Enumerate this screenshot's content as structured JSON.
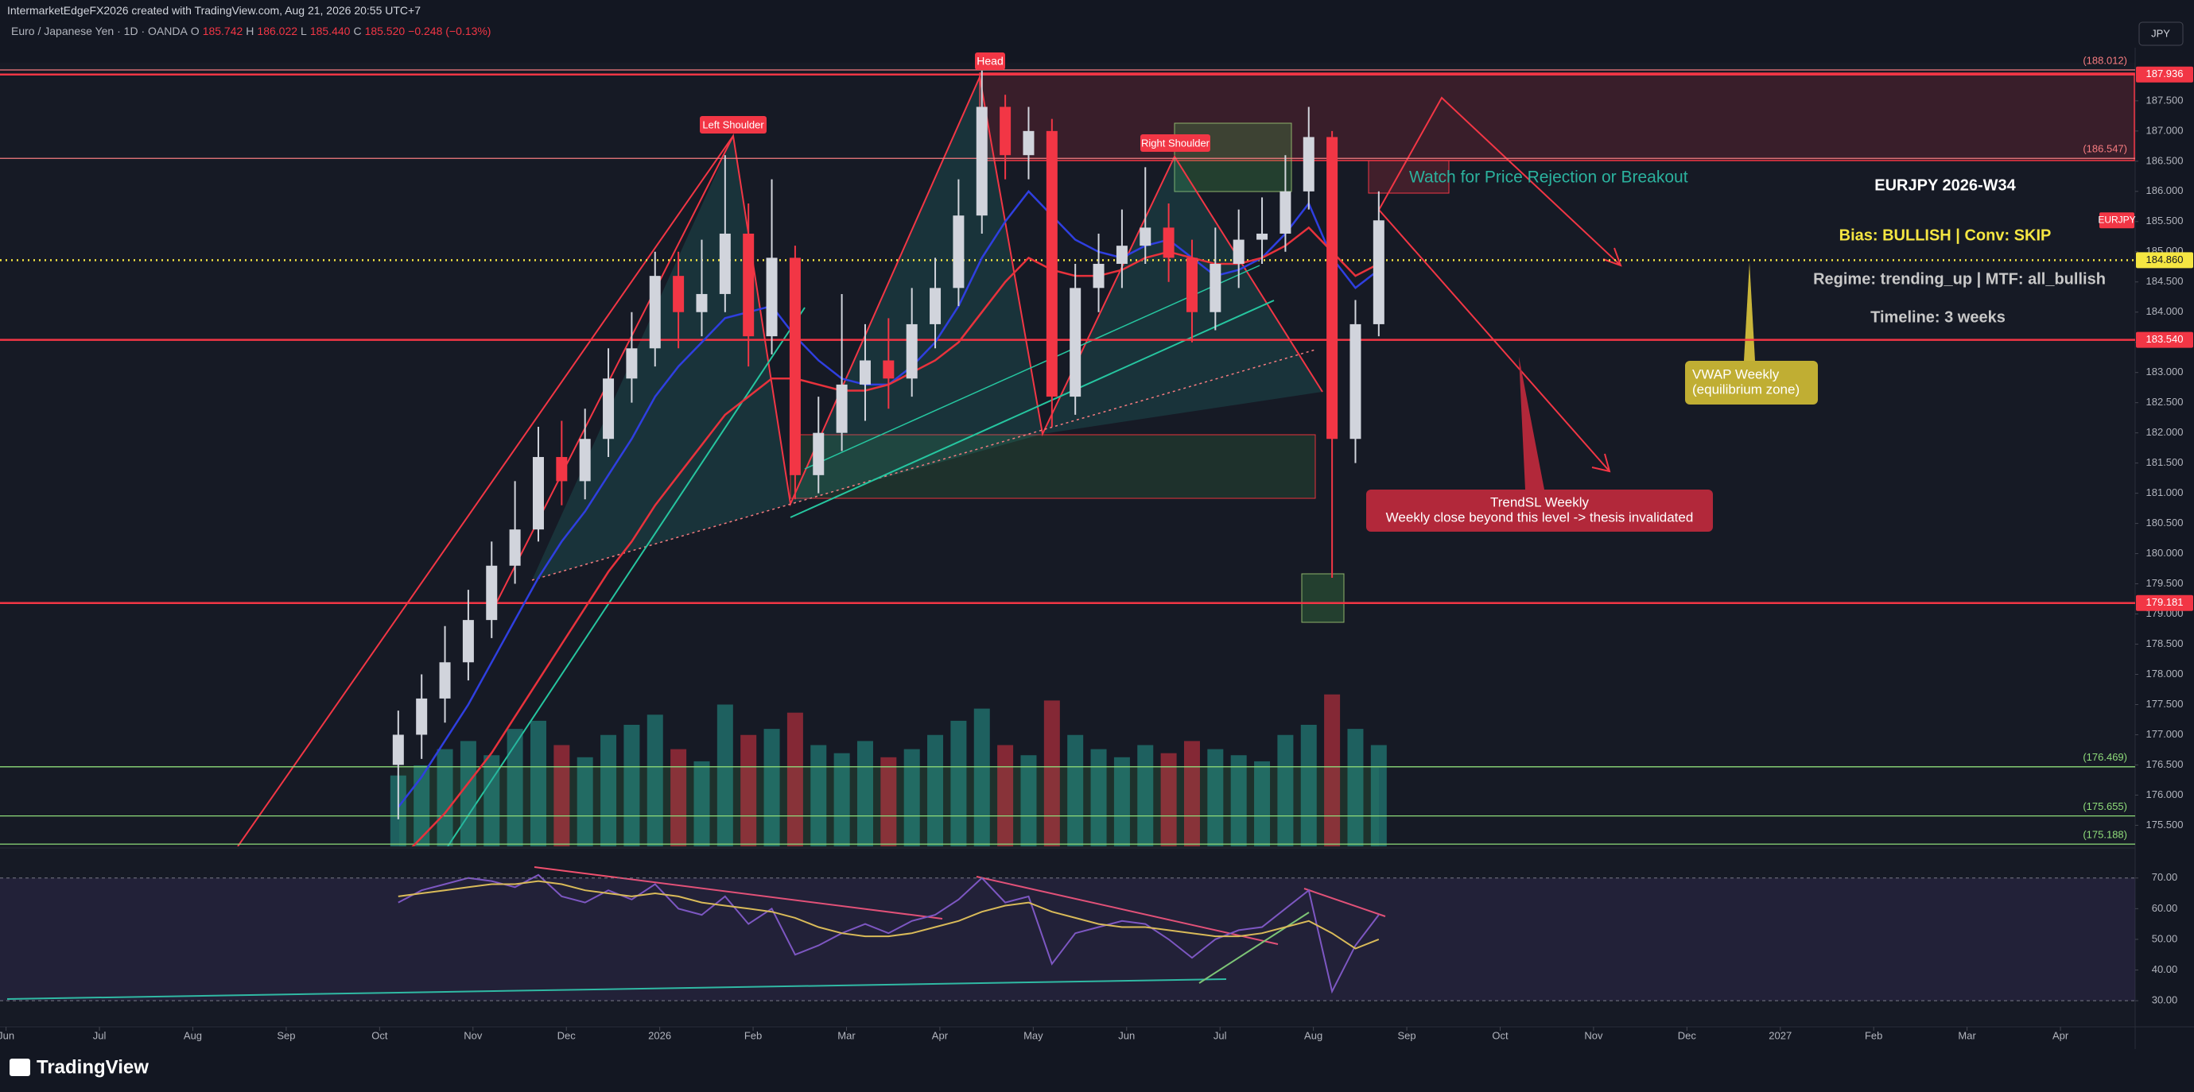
{
  "header": {
    "author_line": "IntermarketEdgeFX2026 created with TradingView.com, Aug 21, 2026 20:55 UTC+7",
    "symbol": "Euro / Japanese Yen · 1D · OANDA",
    "ohlc": [
      "O",
      "185.742",
      "H",
      "186.022",
      "L",
      "185.440",
      "C",
      "185.520",
      "−0.248 (−0.13%)"
    ],
    "currency": "JPY",
    "brand": "TradingView",
    "ticker": "EURJPY"
  },
  "annotations": {
    "head": "Head",
    "left_shoulder": "Left Shoulder",
    "right_shoulder": "Right Shoulder",
    "watch": "Watch for Price Rejection or Breakout",
    "title": "EURJPY 2026-W34",
    "bias": "Bias: BULLISH | Conv: SKIP",
    "regime": "Regime: trending_up | MTF: all_bullish",
    "timeline": "Timeline: 3 weeks",
    "vwap": [
      "VWAP Weekly",
      "(equilibrium zone)"
    ],
    "trendsl": [
      "TrendSL Weekly",
      "Weekly close beyond this level -> thesis invalidated"
    ]
  },
  "chart_data": {
    "type": "candlestick",
    "up_color": "#d1d4dc",
    "down_color": "#f23645",
    "x": [
      4.2,
      4.45,
      4.7,
      4.95,
      5.2,
      5.45,
      5.7,
      5.95,
      6.2,
      6.45,
      6.7,
      6.95,
      7.2,
      7.45,
      7.7,
      7.95,
      8.2,
      8.45,
      8.7,
      8.95,
      9.2,
      9.45,
      9.7,
      9.95,
      10.2,
      10.45,
      10.7,
      10.95,
      11.2,
      11.45,
      11.7,
      11.95,
      12.2,
      12.45,
      12.7,
      12.95,
      13.2,
      13.45,
      13.7,
      13.95,
      14.2,
      14.45,
      14.7
    ],
    "open": [
      176.5,
      177.0,
      177.6,
      178.2,
      178.9,
      179.8,
      180.4,
      181.6,
      181.2,
      181.9,
      182.9,
      183.4,
      184.6,
      184.0,
      184.3,
      185.3,
      183.6,
      184.9,
      181.3,
      182.0,
      182.8,
      183.2,
      182.9,
      183.8,
      184.4,
      185.6,
      187.4,
      186.6,
      187.0,
      182.6,
      184.4,
      184.8,
      185.1,
      185.4,
      184.9,
      184.0,
      184.8,
      185.2,
      185.3,
      186.0,
      186.9,
      181.9,
      183.8
    ],
    "high": [
      177.4,
      178.0,
      178.8,
      179.4,
      180.2,
      181.2,
      182.1,
      182.2,
      182.4,
      183.4,
      184.0,
      185.0,
      185.0,
      185.2,
      186.6,
      185.8,
      186.2,
      185.1,
      182.6,
      184.3,
      183.8,
      183.9,
      184.4,
      184.9,
      186.2,
      188.0,
      187.6,
      187.4,
      187.2,
      184.8,
      185.3,
      185.7,
      186.4,
      185.8,
      185.2,
      185.4,
      185.7,
      185.9,
      186.6,
      187.4,
      187.0,
      184.2,
      186.0
    ],
    "low": [
      175.6,
      176.6,
      177.2,
      177.9,
      178.6,
      179.5,
      180.2,
      180.8,
      180.9,
      181.6,
      182.5,
      183.1,
      183.4,
      183.6,
      184.0,
      183.1,
      183.3,
      180.9,
      181.0,
      181.7,
      182.2,
      182.4,
      182.6,
      183.4,
      184.1,
      185.3,
      186.2,
      186.2,
      182.1,
      182.3,
      184.0,
      184.4,
      184.8,
      184.5,
      183.5,
      183.7,
      184.4,
      184.8,
      185.0,
      185.7,
      179.6,
      181.5,
      183.6
    ],
    "close": [
      177.0,
      177.6,
      178.2,
      178.9,
      179.8,
      180.4,
      181.6,
      181.2,
      181.9,
      182.9,
      183.4,
      184.6,
      184.0,
      184.3,
      185.3,
      183.6,
      184.9,
      181.3,
      182.0,
      182.8,
      183.2,
      182.9,
      183.8,
      184.4,
      185.6,
      187.4,
      186.6,
      187.0,
      182.6,
      184.4,
      184.8,
      185.1,
      185.4,
      184.9,
      184.0,
      184.8,
      185.2,
      185.3,
      186.0,
      186.9,
      181.9,
      183.8,
      185.52
    ],
    "ma_fast": {
      "color": "#2f3fe0",
      "values": [
        175.8,
        176.3,
        176.9,
        177.5,
        178.2,
        178.9,
        179.6,
        180.2,
        180.7,
        181.3,
        181.9,
        182.6,
        183.1,
        183.5,
        183.9,
        184.0,
        184.1,
        183.6,
        183.2,
        182.9,
        182.8,
        182.8,
        183.1,
        183.5,
        184.1,
        184.9,
        185.5,
        186.0,
        185.6,
        185.2,
        185.0,
        184.9,
        185.1,
        185.2,
        184.9,
        184.6,
        184.7,
        184.9,
        185.3,
        185.8,
        184.9,
        184.4,
        184.7
      ]
    },
    "ma_slow": {
      "color": "#e8323c",
      "values": [
        174.9,
        175.3,
        175.7,
        176.2,
        176.7,
        177.3,
        177.9,
        178.5,
        179.1,
        179.7,
        180.2,
        180.8,
        181.3,
        181.8,
        182.3,
        182.6,
        182.9,
        182.9,
        182.8,
        182.7,
        182.7,
        182.8,
        183.0,
        183.2,
        183.5,
        184.0,
        184.5,
        184.9,
        184.7,
        184.6,
        184.6,
        184.7,
        184.9,
        185.0,
        184.9,
        184.8,
        184.8,
        184.9,
        185.1,
        185.4,
        185.0,
        184.6,
        184.8
      ]
    },
    "volume": {
      "vlim": [
        0,
        100
      ],
      "up_color": "#26a69a",
      "down_color": "#f23645",
      "values": [
        35,
        40,
        48,
        52,
        45,
        58,
        62,
        50,
        44,
        55,
        60,
        65,
        48,
        42,
        70,
        55,
        58,
        66,
        50,
        46,
        52,
        44,
        48,
        55,
        62,
        68,
        50,
        45,
        72,
        55,
        48,
        44,
        50,
        46,
        52,
        48,
        45,
        42,
        55,
        60,
        75,
        58,
        50
      ]
    },
    "xlim": [
      -0.065,
      22.8
    ],
    "xticks": [
      {
        "value": 0,
        "label": "Jun"
      },
      {
        "value": 1,
        "label": "Jul"
      },
      {
        "value": 2,
        "label": "Aug"
      },
      {
        "value": 3,
        "label": "Sep"
      },
      {
        "value": 4,
        "label": "Oct"
      },
      {
        "value": 5,
        "label": "Nov"
      },
      {
        "value": 6,
        "label": "Dec"
      },
      {
        "value": 7,
        "label": "2026"
      },
      {
        "value": 8,
        "label": "Feb"
      },
      {
        "value": 9,
        "label": "Mar"
      },
      {
        "value": 10,
        "label": "Apr"
      },
      {
        "value": 11,
        "label": "May"
      },
      {
        "value": 12,
        "label": "Jun"
      },
      {
        "value": 13,
        "label": "Jul"
      },
      {
        "value": 14,
        "label": "Aug"
      },
      {
        "value": 15,
        "label": "Sep"
      },
      {
        "value": 16,
        "label": "Oct"
      },
      {
        "value": 17,
        "label": "Nov"
      },
      {
        "value": 18,
        "label": "Dec"
      },
      {
        "value": 19,
        "label": "2027"
      },
      {
        "value": 20,
        "label": "Feb"
      },
      {
        "value": 21,
        "label": "Mar"
      },
      {
        "value": 22,
        "label": "Apr"
      }
    ],
    "ylim": [
      175.15,
      188.13
    ],
    "yticks": [
      {
        "value": 175.5,
        "label": "175.500"
      },
      {
        "value": 176,
        "label": "176.000"
      },
      {
        "value": 176.5,
        "label": "176.500"
      },
      {
        "value": 177,
        "label": "177.000"
      },
      {
        "value": 177.5,
        "label": "177.500"
      },
      {
        "value": 178,
        "label": "178.000"
      },
      {
        "value": 178.5,
        "label": "178.500"
      },
      {
        "value": 179,
        "label": "179.000"
      },
      {
        "value": 179.5,
        "label": "179.500"
      },
      {
        "value": 180,
        "label": "180.000"
      },
      {
        "value": 180.5,
        "label": "180.500"
      },
      {
        "value": 181,
        "label": "181.000"
      },
      {
        "value": 181.5,
        "label": "181.500"
      },
      {
        "value": 182,
        "label": "182.000"
      },
      {
        "value": 182.5,
        "label": "182.500"
      },
      {
        "value": 183,
        "label": "183.000"
      },
      {
        "value": 183.5,
        "label": "183.500"
      },
      {
        "value": 184,
        "label": "184.000"
      },
      {
        "value": 184.5,
        "label": "184.500"
      },
      {
        "value": 185,
        "label": "185.000"
      },
      {
        "value": 185.5,
        "label": "185.500"
      },
      {
        "value": 186,
        "label": "186.000"
      },
      {
        "value": 186.5,
        "label": "186.500"
      },
      {
        "value": 187,
        "label": "187.000"
      },
      {
        "value": 187.5,
        "label": "187.500"
      }
    ],
    "levels": [
      {
        "value": 188.012,
        "label": "(188.012)",
        "kind": "paren",
        "color": "#f77c80",
        "dashed": false
      },
      {
        "value": 187.936,
        "label": "187.936",
        "kind": "badge",
        "color": "#f23645",
        "dashed": false
      },
      {
        "value": 186.547,
        "label": "(186.547)",
        "kind": "paren",
        "color": "#f77c80",
        "dashed": false
      },
      {
        "value": 184.86,
        "label": "184.860",
        "kind": "badge",
        "color": "#f5e642",
        "dashed": true
      },
      {
        "value": 183.54,
        "label": "183.540",
        "kind": "badge",
        "color": "#f23645",
        "dashed": false
      },
      {
        "value": 179.181,
        "label": "179.181",
        "kind": "badge",
        "color": "#f23645",
        "dashed": false
      },
      {
        "value": 176.469,
        "label": "(176.469)",
        "kind": "paren",
        "color": "#8fdc7a",
        "dashed": false
      },
      {
        "value": 175.655,
        "label": "(175.655)",
        "kind": "paren",
        "color": "#8fdc7a",
        "dashed": false
      },
      {
        "value": 175.188,
        "label": "(175.188)",
        "kind": "paren",
        "color": "#8fdc7a",
        "dashed": false
      }
    ],
    "rsi": {
      "color": "#7e57c2",
      "band": [
        30,
        70
      ],
      "ylim": [
        22,
        79
      ],
      "yticks": [
        {
          "value": 30,
          "label": "30.00"
        },
        {
          "value": 40,
          "label": "40.00"
        },
        {
          "value": 50,
          "label": "50.00"
        },
        {
          "value": 60,
          "label": "60.00"
        },
        {
          "value": 70,
          "label": "70.00"
        }
      ],
      "values": [
        62,
        66,
        68,
        70,
        69,
        67,
        71,
        64,
        62,
        66,
        63,
        68,
        60,
        58,
        64,
        55,
        60,
        45,
        48,
        52,
        55,
        52,
        56,
        58,
        63,
        70,
        62,
        64,
        42,
        52,
        54,
        56,
        55,
        50,
        44,
        50,
        53,
        54,
        60,
        66,
        33,
        48,
        58
      ],
      "ma": {
        "color": "#e6c84a",
        "values": [
          64,
          65,
          66,
          67,
          68,
          68,
          69,
          68,
          66,
          65,
          64,
          65,
          64,
          62,
          61,
          60,
          59,
          57,
          54,
          52,
          51,
          51,
          52,
          54,
          56,
          59,
          61,
          62,
          59,
          57,
          55,
          54,
          54,
          53,
          52,
          51,
          51,
          52,
          54,
          56,
          52,
          47,
          50
        ]
      }
    }
  }
}
